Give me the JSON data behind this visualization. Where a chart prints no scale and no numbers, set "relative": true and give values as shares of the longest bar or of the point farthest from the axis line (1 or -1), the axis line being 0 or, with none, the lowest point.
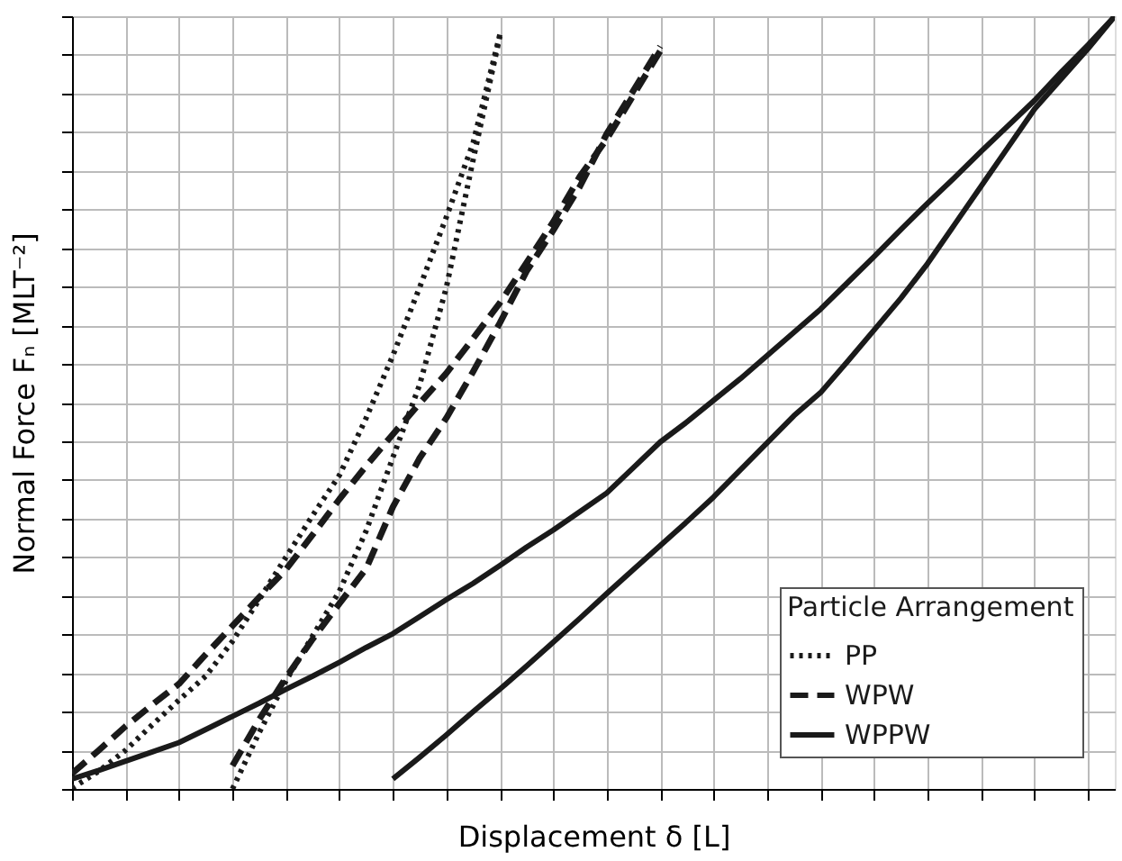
{
  "chart_data": {
    "type": "line",
    "relative": true,
    "xlabel": "Displacement δ [L]",
    "ylabel": "Normal Force Fₙ [MLT⁻²]",
    "legend_title": "Particle Arrangement",
    "categories": [
      null,
      null,
      null,
      null,
      null,
      null,
      null,
      null,
      null,
      null,
      null,
      null,
      null,
      null,
      null,
      null,
      null,
      null,
      null,
      null,
      null,
      null,
      null,
      null,
      null,
      null,
      null,
      null,
      null,
      null,
      null,
      null,
      null,
      null,
      null,
      null,
      null,
      null,
      null,
      null
    ],
    "tick_labels": false,
    "grid": true,
    "legend": "bottom right",
    "marker": "none",
    "series": [
      {
        "name": "PP",
        "color": "#1a1a1a",
        "line_style": "dotted",
        "values": [
          0.001,
          0.023,
          0.05,
          0.083,
          0.115,
          0.146,
          0.191,
          0.245,
          0.3,
          0.354,
          0.406,
          0.48,
          0.561,
          0.649,
          0.74,
          0.836,
          0.976,
          null,
          null,
          null,
          null,
          null,
          null,
          null,
          null,
          null,
          null,
          null,
          null,
          null,
          null,
          null,
          null,
          null,
          null,
          null,
          null,
          null,
          null,
          null
        ]
      },
      {
        "color": "#1a1a1a",
        "line_style": "dotted",
        "values": [
          null,
          null,
          null,
          null,
          null,
          null,
          0.0,
          0.073,
          0.14,
          0.198,
          0.256,
          0.334,
          0.429,
          0.523,
          0.649,
          0.814,
          0.974,
          null,
          null,
          null,
          null,
          null,
          null,
          null,
          null,
          null,
          null,
          null,
          null,
          null,
          null,
          null,
          null,
          null,
          null,
          null,
          null,
          null,
          null,
          null
        ]
      },
      {
        "name": "WPW",
        "color": "#1a1a1a",
        "line_style": "dashed",
        "values": [
          0.02,
          0.05,
          0.081,
          0.109,
          0.136,
          0.174,
          0.211,
          0.248,
          0.284,
          0.329,
          0.375,
          0.418,
          0.459,
          0.499,
          0.538,
          0.583,
          0.629,
          0.681,
          0.734,
          0.793,
          0.841,
          0.898,
          0.955,
          null,
          null,
          null,
          null,
          null,
          null,
          null,
          null,
          null,
          null,
          null,
          null,
          null,
          null,
          null,
          null,
          null
        ]
      },
      {
        "color": "#1a1a1a",
        "line_style": "dashed",
        "values": [
          null,
          null,
          null,
          null,
          null,
          null,
          0.03,
          0.09,
          0.144,
          0.194,
          0.24,
          0.285,
          0.365,
          0.428,
          0.48,
          0.54,
          0.603,
          0.67,
          0.723,
          0.78,
          0.848,
          0.904,
          0.961,
          null,
          null,
          null,
          null,
          null,
          null,
          null,
          null,
          null,
          null,
          null,
          null,
          null,
          null,
          null,
          null,
          null
        ]
      },
      {
        "name": "WPPW",
        "color": "#1a1a1a",
        "line_style": "solid",
        "values": [
          0.013,
          0.024,
          0.036,
          0.048,
          0.06,
          0.077,
          0.094,
          0.111,
          0.129,
          0.146,
          0.164,
          0.183,
          0.201,
          0.223,
          0.245,
          0.266,
          0.289,
          0.313,
          0.335,
          0.359,
          0.383,
          0.416,
          0.449,
          0.475,
          0.503,
          0.531,
          0.561,
          0.591,
          0.621,
          0.655,
          0.689,
          0.724,
          0.758,
          0.791,
          0.825,
          0.858,
          0.891,
          0.928,
          0.963,
          1.0
        ]
      },
      {
        "color": "#1a1a1a",
        "line_style": "solid",
        "values": [
          null,
          null,
          null,
          null,
          null,
          null,
          null,
          null,
          null,
          null,
          null,
          null,
          0.013,
          0.041,
          0.07,
          0.1,
          0.129,
          0.159,
          0.19,
          0.221,
          0.253,
          0.284,
          0.315,
          0.346,
          0.378,
          0.413,
          0.448,
          0.483,
          0.513,
          0.553,
          0.594,
          0.635,
          0.68,
          0.73,
          0.78,
          0.83,
          0.88,
          0.919,
          0.958,
          1.0
        ]
      }
    ]
  }
}
